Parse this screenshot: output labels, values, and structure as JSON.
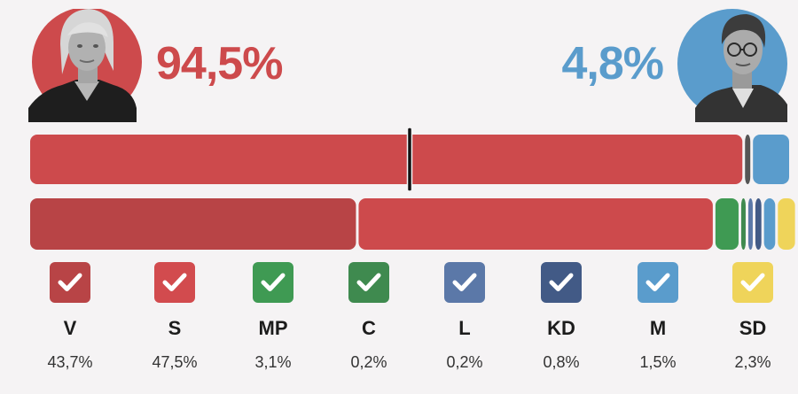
{
  "header": {
    "left": {
      "percent": "94,5%",
      "color": "#cd4a4c",
      "portrait": "woman-portrait-photo"
    },
    "right": {
      "percent": "4,8%",
      "color": "#5a9ccc",
      "portrait": "man-portrait-photo"
    }
  },
  "chart_data": {
    "type": "bar",
    "orientation": "horizontal-stacked",
    "bars": [
      {
        "segments": [
          {
            "value": 94.5,
            "color": "#cd4a4c"
          },
          {
            "value": 0.7,
            "color": "#555555"
          },
          {
            "value": 4.8,
            "color": "#5a9ccc"
          }
        ],
        "marker_at": 50
      },
      {
        "segments": [
          {
            "value": 43.7,
            "color": "#b84446"
          },
          {
            "value": 47.5,
            "color": "#cd4a4c"
          },
          {
            "value": 3.1,
            "color": "#3f9a53"
          },
          {
            "value": 0.2,
            "color": "#3f8a4f"
          },
          {
            "value": 0.2,
            "color": "#5b78a8"
          },
          {
            "value": 0.8,
            "color": "#425a86"
          },
          {
            "value": 1.5,
            "color": "#5a9ccc"
          },
          {
            "value": 2.3,
            "color": "#efd45a"
          }
        ]
      }
    ],
    "parties": [
      {
        "abbr": "V",
        "value": "43,7%",
        "color": "#b84446",
        "icon": "checkmark-icon"
      },
      {
        "abbr": "S",
        "value": "47,5%",
        "color": "#d24b4e",
        "icon": "checkmark-icon"
      },
      {
        "abbr": "MP",
        "value": "3,1%",
        "color": "#3f9a53",
        "icon": "checkmark-icon"
      },
      {
        "abbr": "C",
        "value": "0,2%",
        "color": "#3f8a4f",
        "icon": "checkmark-icon"
      },
      {
        "abbr": "L",
        "value": "0,2%",
        "color": "#5b78a8",
        "icon": "checkmark-icon"
      },
      {
        "abbr": "KD",
        "value": "0,8%",
        "color": "#425a86",
        "icon": "checkmark-icon"
      },
      {
        "abbr": "M",
        "value": "1,5%",
        "color": "#5a9ccc",
        "icon": "checkmark-icon"
      },
      {
        "abbr": "SD",
        "value": "2,3%",
        "color": "#efd45a",
        "icon": "checkmark-icon"
      }
    ]
  }
}
